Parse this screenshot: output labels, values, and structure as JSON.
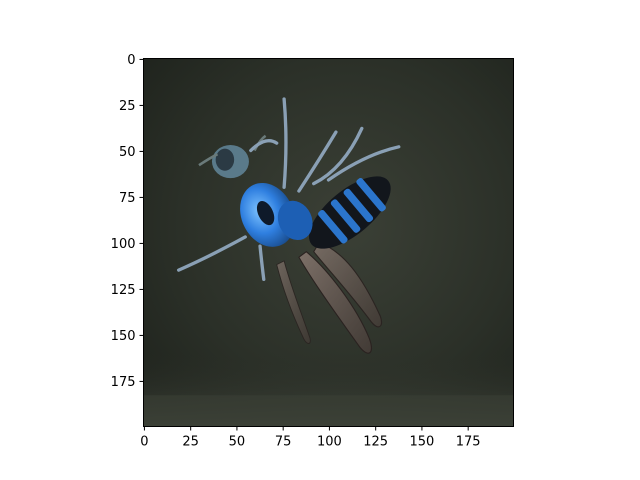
{
  "chart_data": {
    "type": "image",
    "subject": "blue-wasp-in-flight",
    "image_size": [
      200,
      200
    ],
    "xlim": [
      -0.5,
      199.5
    ],
    "ylim": [
      199.5,
      -0.5
    ],
    "x_ticks": [
      0,
      25,
      50,
      75,
      100,
      125,
      150,
      175
    ],
    "y_ticks": [
      0,
      25,
      50,
      75,
      100,
      125,
      150,
      175
    ],
    "x_tick_labels": [
      "0",
      "25",
      "50",
      "75",
      "100",
      "125",
      "150",
      "175"
    ],
    "y_tick_labels": [
      "0",
      "25",
      "50",
      "75",
      "100",
      "125",
      "150",
      "175"
    ],
    "grid": false,
    "colors": {
      "background_dark": "#262a22",
      "background_mid": "#3a3f35",
      "wasp_blue": "#2f7fe0",
      "wasp_black": "#12161c",
      "wing": "#6a5a55"
    }
  }
}
